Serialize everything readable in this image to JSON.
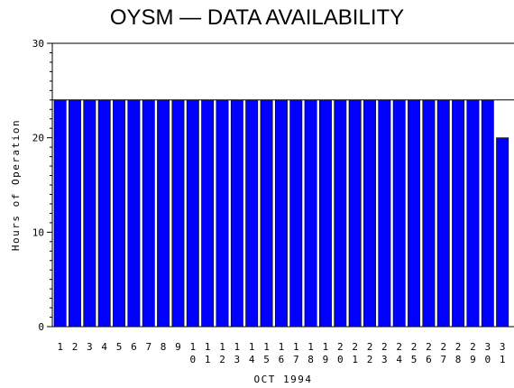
{
  "chart_data": {
    "type": "bar",
    "title": "OYSM — DATA AVAILABILITY",
    "xlabel": "OCT 1994",
    "ylabel": "Hours of Operation",
    "ylim": [
      0,
      30
    ],
    "yticks": [
      0,
      10,
      20,
      30
    ],
    "reference_line": 24,
    "bar_color": "#0000ff",
    "categories": [
      "1",
      "2",
      "3",
      "4",
      "5",
      "6",
      "7",
      "8",
      "9",
      "10",
      "11",
      "12",
      "13",
      "14",
      "15",
      "16",
      "17",
      "18",
      "19",
      "20",
      "21",
      "22",
      "23",
      "24",
      "25",
      "26",
      "27",
      "28",
      "29",
      "30",
      "31"
    ],
    "values": [
      24,
      24,
      24,
      24,
      24,
      24,
      24,
      24,
      24,
      24,
      24,
      24,
      24,
      24,
      24,
      24,
      24,
      24,
      24,
      24,
      24,
      24,
      24,
      24,
      24,
      24,
      24,
      24,
      24,
      24,
      20
    ]
  }
}
